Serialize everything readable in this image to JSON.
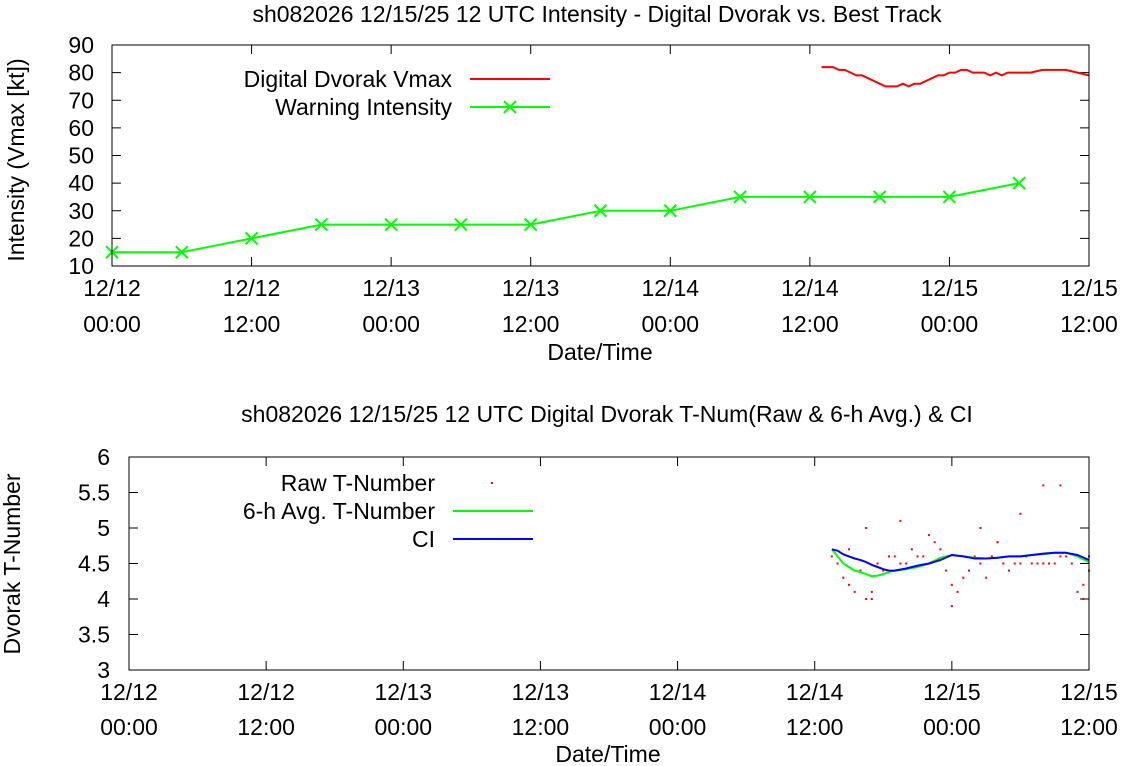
{
  "chart_data": [
    {
      "type": "line",
      "title": "sh082026 12/15/25  12 UTC Intensity - Digital Dvorak vs. Best Track",
      "xlabel": "Date/Time",
      "ylabel": "Intensity (Vmax [kt])",
      "xlim": [
        0,
        84
      ],
      "ylim": [
        10,
        90
      ],
      "yticks": [
        10,
        20,
        30,
        40,
        50,
        60,
        70,
        80,
        90
      ],
      "xticks": [
        {
          "hour": 0,
          "line1": "12/12",
          "line2": "00:00"
        },
        {
          "hour": 12,
          "line1": "12/12",
          "line2": "12:00"
        },
        {
          "hour": 24,
          "line1": "12/13",
          "line2": "00:00"
        },
        {
          "hour": 36,
          "line1": "12/13",
          "line2": "12:00"
        },
        {
          "hour": 48,
          "line1": "12/14",
          "line2": "00:00"
        },
        {
          "hour": 60,
          "line1": "12/14",
          "line2": "12:00"
        },
        {
          "hour": 72,
          "line1": "12/15",
          "line2": "00:00"
        },
        {
          "hour": 84,
          "line1": "12/15",
          "line2": "12:00"
        }
      ],
      "legend_position": "top-left",
      "series": [
        {
          "name": "Digital Dvorak Vmax",
          "color": "#ff0000",
          "marker": "none",
          "x": [
            61.0,
            62.0,
            62.5,
            63.0,
            63.5,
            64.0,
            64.5,
            65.0,
            65.5,
            66.0,
            66.5,
            67.0,
            67.5,
            68.0,
            68.5,
            69.0,
            69.5,
            70.0,
            70.5,
            71.0,
            71.5,
            72.0,
            72.5,
            73.0,
            73.5,
            74.0,
            74.5,
            75.0,
            75.5,
            76.0,
            76.5,
            77.0,
            78.0,
            79.0,
            80.0,
            81.0,
            82.0,
            83.0,
            84.0
          ],
          "y": [
            82,
            82,
            81,
            81,
            80,
            79,
            79,
            78,
            77,
            76,
            75,
            75,
            75,
            76,
            75,
            76,
            76,
            77,
            78,
            79,
            79,
            80,
            80,
            81,
            81,
            80,
            80,
            80,
            79,
            80,
            79,
            80,
            80,
            80,
            81,
            81,
            81,
            80,
            79
          ]
        },
        {
          "name": "Warning Intensity",
          "color": "#00ff00",
          "marker": "x",
          "x": [
            0,
            6,
            12,
            18,
            24,
            30,
            36,
            42,
            48,
            54,
            60,
            66,
            72,
            78
          ],
          "y": [
            15,
            15,
            20,
            25,
            25,
            25,
            25,
            30,
            30,
            35,
            35,
            35,
            35,
            40
          ]
        }
      ]
    },
    {
      "type": "line",
      "title": "sh082026 12/15/25  12 UTC Digital Dvorak T-Num(Raw & 6-h Avg.) & CI",
      "xlabel": "Date/Time",
      "ylabel": "Dvorak T-Number",
      "xlim": [
        0,
        84
      ],
      "ylim": [
        3,
        6
      ],
      "yticks": [
        3,
        3.5,
        4,
        4.5,
        5,
        5.5,
        6
      ],
      "xticks": [
        {
          "hour": 0,
          "line1": "12/12",
          "line2": "00:00"
        },
        {
          "hour": 12,
          "line1": "12/12",
          "line2": "12:00"
        },
        {
          "hour": 24,
          "line1": "12/13",
          "line2": "00:00"
        },
        {
          "hour": 36,
          "line1": "12/13",
          "line2": "12:00"
        },
        {
          "hour": 48,
          "line1": "12/14",
          "line2": "00:00"
        },
        {
          "hour": 60,
          "line1": "12/14",
          "line2": "12:00"
        },
        {
          "hour": 72,
          "line1": "12/15",
          "line2": "00:00"
        },
        {
          "hour": 84,
          "line1": "12/15",
          "line2": "12:00"
        }
      ],
      "legend_position": "top-left",
      "series": [
        {
          "name": "Raw T-Number",
          "color": "#ff0000",
          "marker": "dot",
          "x": [
            61.5,
            62.0,
            62.5,
            63.0,
            63.5,
            64.0,
            64.5,
            65.0,
            65.5,
            66.0,
            66.5,
            67.0,
            67.5,
            68.0,
            68.5,
            69.0,
            69.5,
            70.0,
            70.5,
            71.0,
            71.5,
            72.0,
            72.5,
            73.0,
            73.5,
            74.0,
            74.5,
            75.0,
            75.5,
            76.0,
            76.5,
            77.0,
            77.5,
            78.0,
            78.5,
            79.0,
            79.5,
            80.0,
            80.5,
            81.0,
            81.5,
            82.0,
            82.5,
            83.0,
            83.5,
            84.0,
            63.0,
            64.5,
            65.0,
            67.5,
            70.0,
            72.0,
            74.5,
            76.0,
            78.0,
            80.0,
            81.5,
            83.5,
            84.0
          ],
          "y": [
            4.6,
            4.5,
            4.3,
            4.2,
            4.1,
            4.4,
            4.0,
            4.0,
            4.5,
            4.4,
            4.6,
            4.6,
            4.5,
            4.5,
            4.7,
            4.6,
            4.6,
            4.5,
            4.8,
            4.7,
            4.4,
            3.9,
            4.1,
            4.3,
            4.4,
            4.6,
            4.5,
            4.3,
            4.6,
            4.8,
            4.5,
            4.4,
            4.5,
            4.5,
            4.6,
            4.5,
            4.5,
            4.5,
            4.5,
            4.5,
            4.6,
            4.6,
            4.5,
            4.1,
            4.0,
            4.4,
            4.7,
            5.0,
            4.1,
            5.1,
            4.9,
            4.2,
            5.0,
            4.8,
            5.2,
            5.6,
            5.6,
            4.2,
            4.6
          ]
        },
        {
          "name": "6-h Avg. T-Number",
          "color": "#00ff00",
          "marker": "none",
          "x": [
            61.5,
            62.0,
            62.5,
            63.0,
            63.5,
            64.0,
            64.5,
            65.0,
            65.5,
            66.0,
            66.5,
            67.0,
            68.0,
            69.0,
            70.0,
            71.0,
            72.0,
            73.0,
            74.0,
            75.0,
            76.0,
            77.0,
            78.0,
            79.0,
            80.0,
            81.0,
            82.0,
            83.0,
            84.0
          ],
          "y": [
            4.7,
            4.6,
            4.5,
            4.45,
            4.4,
            4.38,
            4.35,
            4.32,
            4.33,
            4.35,
            4.38,
            4.4,
            4.42,
            4.45,
            4.5,
            4.58,
            4.62,
            4.6,
            4.58,
            4.57,
            4.58,
            4.6,
            4.6,
            4.62,
            4.63,
            4.65,
            4.65,
            4.6,
            4.52
          ]
        },
        {
          "name": "CI",
          "color": "#0000ff",
          "marker": "none",
          "x": [
            61.5,
            62.0,
            62.5,
            63.0,
            63.5,
            64.0,
            64.5,
            65.0,
            65.5,
            66.0,
            66.5,
            67.0,
            68.0,
            69.0,
            70.0,
            71.0,
            72.0,
            73.0,
            74.0,
            75.0,
            76.0,
            77.0,
            78.0,
            79.0,
            80.0,
            81.0,
            82.0,
            83.0,
            84.0
          ],
          "y": [
            4.7,
            4.68,
            4.63,
            4.6,
            4.57,
            4.55,
            4.52,
            4.48,
            4.45,
            4.42,
            4.4,
            4.4,
            4.43,
            4.47,
            4.5,
            4.55,
            4.62,
            4.6,
            4.57,
            4.57,
            4.58,
            4.6,
            4.6,
            4.62,
            4.64,
            4.65,
            4.65,
            4.62,
            4.55
          ]
        }
      ]
    }
  ]
}
